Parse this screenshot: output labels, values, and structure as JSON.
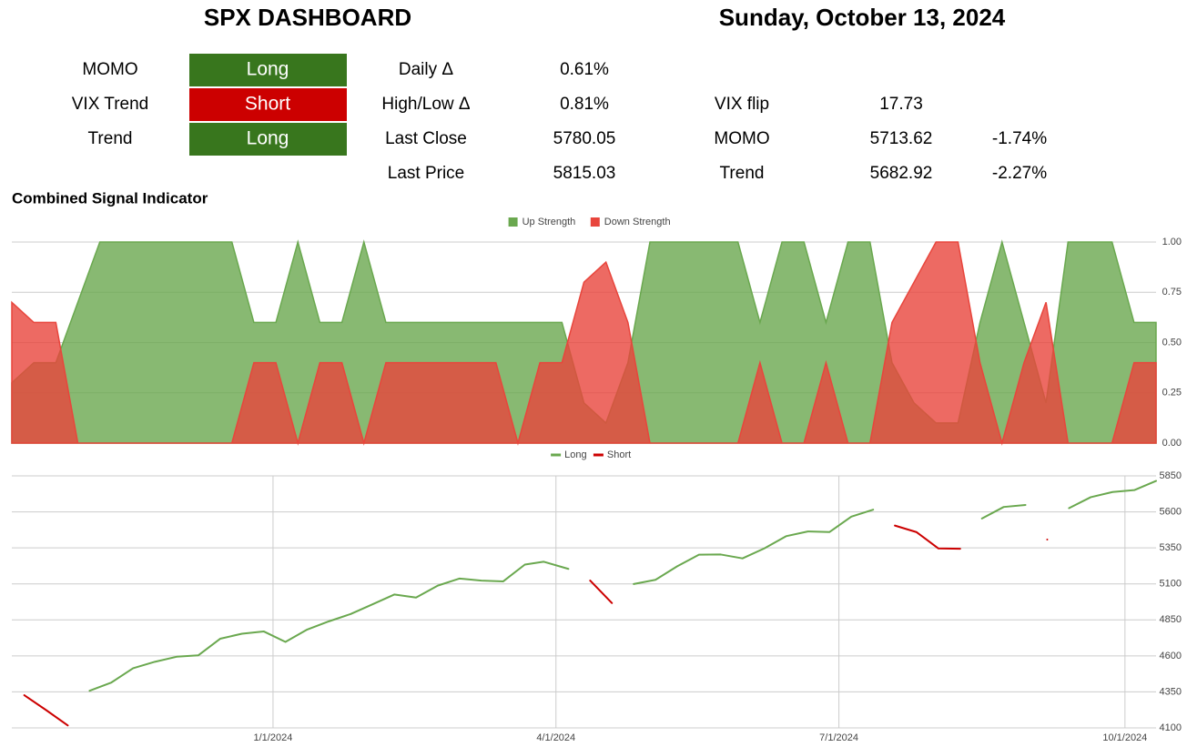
{
  "header": {
    "title": "SPX DASHBOARD",
    "date": "Sunday, October 13, 2024"
  },
  "signals": [
    {
      "label": "MOMO",
      "state": "Long",
      "color": "#38761d"
    },
    {
      "label": "VIX Trend",
      "state": "Short",
      "color": "#cc0000"
    },
    {
      "label": "Trend",
      "state": "Long",
      "color": "#38761d"
    }
  ],
  "stats": [
    {
      "label": "Daily Δ",
      "value": "0.61%"
    },
    {
      "label": "High/Low Δ",
      "value": "0.81%"
    },
    {
      "label": "Last Close",
      "value": "5780.05"
    },
    {
      "label": "Last Price",
      "value": "5815.03"
    }
  ],
  "levels": [
    {
      "label": "VIX flip",
      "value": "17.73"
    },
    {
      "label": "MOMO",
      "value": "5713.62",
      "change": "-1.74%"
    },
    {
      "label": "Trend",
      "value": "5682.92",
      "change": "-2.27%"
    }
  ],
  "chart_data": [
    {
      "type": "area",
      "title": "Combined Signal Indicator",
      "series": [
        {
          "name": "Up Strength",
          "color": "#6aa84f",
          "values": [
            0.3,
            0.4,
            0.4,
            0.7,
            1,
            1,
            1,
            1,
            1,
            1,
            1,
            0.6,
            0.6,
            1,
            0.6,
            0.6,
            1,
            0.6,
            0.6,
            0.6,
            0.6,
            0.6,
            0.6,
            0.6,
            0.6,
            0.6,
            0.2,
            0.1,
            0.4,
            1,
            1,
            1,
            1,
            1,
            0.6,
            1,
            1,
            0.6,
            1,
            1,
            0.4,
            0.2,
            0.1,
            0.1,
            0.6,
            1,
            0.6,
            0.2,
            1,
            1,
            1,
            0.6,
            0.6
          ]
        },
        {
          "name": "Down Strength",
          "color": "#e8453c",
          "values": [
            0.7,
            0.6,
            0.6,
            0,
            0,
            0,
            0,
            0,
            0,
            0,
            0,
            0.4,
            0.4,
            0,
            0.4,
            0.4,
            0,
            0.4,
            0.4,
            0.4,
            0.4,
            0.4,
            0.4,
            0,
            0.4,
            0.4,
            0.8,
            0.9,
            0.6,
            0,
            0,
            0,
            0,
            0,
            0.4,
            0,
            0,
            0.4,
            0,
            0,
            0.6,
            0.8,
            1,
            1,
            0.4,
            0,
            0.4,
            0.7,
            0,
            0,
            0,
            0.4,
            0.4
          ]
        }
      ],
      "ylim": [
        0,
        1
      ],
      "yticks": [
        {
          "value": 0,
          "label": "0.00"
        },
        {
          "value": 0.25,
          "label": "0.25"
        },
        {
          "value": 0.5,
          "label": "0.50"
        },
        {
          "value": 0.75,
          "label": "0.75"
        },
        {
          "value": 1,
          "label": "1.00"
        }
      ],
      "grid": true
    },
    {
      "type": "line",
      "x": [
        "10/13/2023",
        "10/20/2023",
        "10/27/2023",
        "11/3/2023",
        "11/10/2023",
        "11/17/2023",
        "11/24/2023",
        "12/1/2023",
        "12/8/2023",
        "12/15/2023",
        "12/22/2023",
        "12/29/2023",
        "1/5/2024",
        "1/12/2024",
        "1/19/2024",
        "1/26/2024",
        "2/2/2024",
        "2/9/2024",
        "2/16/2024",
        "2/23/2024",
        "3/1/2024",
        "3/8/2024",
        "3/15/2024",
        "3/22/2024",
        "3/28/2024",
        "4/5/2024",
        "4/12/2024",
        "4/19/2024",
        "4/26/2024",
        "5/3/2024",
        "5/10/2024",
        "5/17/2024",
        "5/24/2024",
        "5/31/2024",
        "6/7/2024",
        "6/14/2024",
        "6/21/2024",
        "6/28/2024",
        "7/5/2024",
        "7/12/2024",
        "7/19/2024",
        "7/26/2024",
        "8/2/2024",
        "8/9/2024",
        "8/16/2024",
        "8/23/2024",
        "8/30/2024",
        "9/6/2024",
        "9/13/2024",
        "9/20/2024",
        "9/27/2024",
        "10/4/2024",
        "10/11/2024"
      ],
      "series": [
        {
          "name": "Long",
          "color": "#6aa84f",
          "values": [
            null,
            null,
            null,
            4358,
            4415,
            4514,
            4559,
            4594,
            4604,
            4719,
            4754,
            4770,
            4697,
            4783,
            4840,
            4891,
            4958,
            5026,
            5005,
            5088,
            5137,
            5123,
            5117,
            5234,
            5254,
            5204,
            null,
            null,
            5099,
            5128,
            5222,
            5303,
            5304,
            5277,
            5346,
            5431,
            5464,
            5460,
            5567,
            5615,
            null,
            null,
            null,
            null,
            5554,
            5634,
            5648,
            null,
            5626,
            5702,
            5738,
            5751,
            5815
          ]
        },
        {
          "name": "Short",
          "color": "#cc0000",
          "values": [
            4327,
            4224,
            4117,
            null,
            null,
            null,
            null,
            null,
            null,
            null,
            null,
            null,
            null,
            null,
            null,
            null,
            null,
            null,
            null,
            null,
            null,
            null,
            null,
            null,
            null,
            null,
            5123,
            4967,
            null,
            null,
            null,
            null,
            null,
            null,
            null,
            null,
            null,
            null,
            null,
            null,
            5505,
            5459,
            5346,
            5344,
            null,
            null,
            null,
            5408,
            null,
            null,
            null,
            null,
            null
          ]
        }
      ],
      "xlim": [
        "10/9/2023",
        "10/11/2024"
      ],
      "xticks": [
        "1/1/2024",
        "4/1/2024",
        "7/1/2024",
        "10/1/2024"
      ],
      "ylim": [
        4100,
        5850
      ],
      "yticks": [
        4100,
        4350,
        4600,
        4850,
        5100,
        5350,
        5600,
        5850
      ],
      "grid": true
    }
  ]
}
